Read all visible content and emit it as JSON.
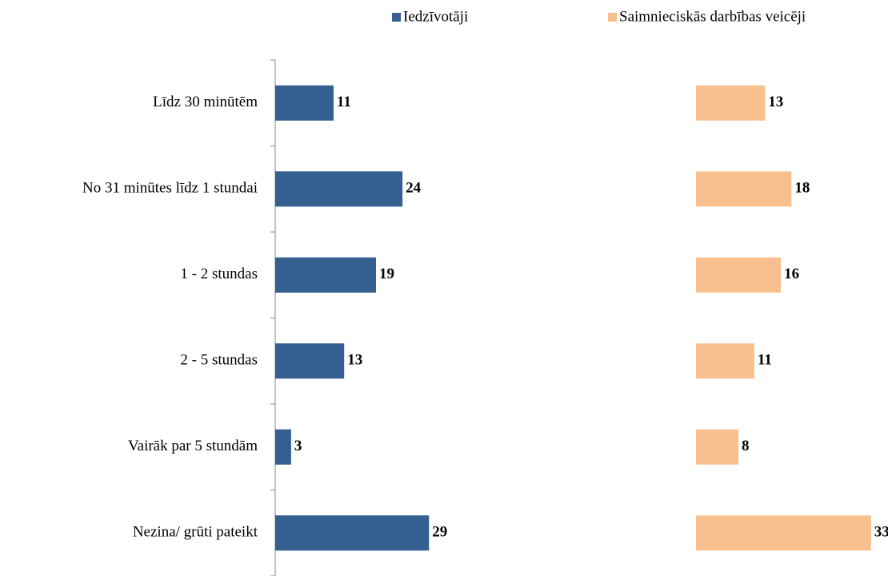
{
  "chart_data": {
    "type": "bar",
    "orientation": "horizontal",
    "legend": "top",
    "categories": [
      "Līdz 30 minūtēm",
      "No 31 minūtes līdz 1 stundai",
      "1 - 2 stundas",
      "2 - 5 stundas",
      "Vairāk par 5 stundām",
      "Nezina/ grūti pateikt"
    ],
    "series": [
      {
        "name": "Iedzīvotāji",
        "color": "#355e91",
        "values": [
          11,
          24,
          19,
          13,
          3,
          29
        ]
      },
      {
        "name": "Saimnieciskās darbības veicēji",
        "color": "#f9c08f",
        "values": [
          13,
          18,
          16,
          11,
          8,
          33
        ]
      }
    ]
  }
}
